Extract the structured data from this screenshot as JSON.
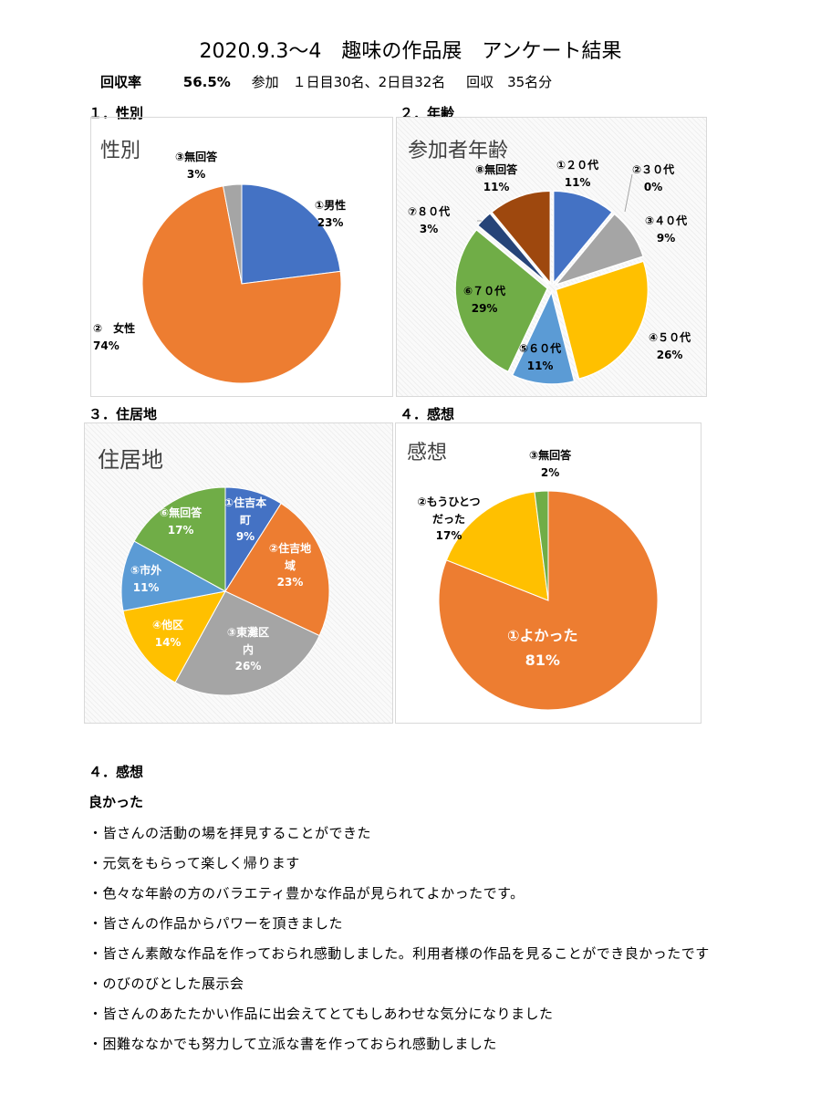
{
  "title": "2020.9.3～4　趣味の作品展　アンケート結果",
  "summary": {
    "rate_label": "回収率",
    "rate_value": "56.5%",
    "participation": "参加　１日目30名、2日目32名",
    "collected": "回収　35名分"
  },
  "sections": {
    "gender": "１．性別",
    "age": "２．年齢",
    "residence": "３．住居地",
    "impression": "４．感想"
  },
  "chart_data": [
    {
      "type": "pie",
      "title": "性別",
      "slices": [
        {
          "label": "①男性",
          "value": 23,
          "value_label": "23%",
          "color": "#4472c4"
        },
        {
          "label": "②　女性",
          "value": 74,
          "value_label": "74%",
          "color": "#ed7d31"
        },
        {
          "label": "③無回答",
          "value": 3,
          "value_label": "3%",
          "color": "#a5a5a5"
        }
      ]
    },
    {
      "type": "pie",
      "title": "参加者年齢",
      "exploded": true,
      "slices": [
        {
          "label": "①２０代",
          "value": 11,
          "value_label": "11%",
          "color": "#4472c4"
        },
        {
          "label": "②３０代",
          "value": 0,
          "value_label": "0%",
          "color": "#ed7d31"
        },
        {
          "label": "③４０代",
          "value": 9,
          "value_label": "9%",
          "color": "#a5a5a5"
        },
        {
          "label": "④５０代",
          "value": 26,
          "value_label": "26%",
          "color": "#ffc000"
        },
        {
          "label": "⑤６０代",
          "value": 11,
          "value_label": "11%",
          "color": "#5b9bd5"
        },
        {
          "label": "⑥７０代",
          "value": 29,
          "value_label": "29%",
          "color": "#70ad47"
        },
        {
          "label": "⑦８０代",
          "value": 3,
          "value_label": "3%",
          "color": "#264478"
        },
        {
          "label": "⑧無回答",
          "value": 11,
          "value_label": "11%",
          "color": "#9e480e"
        }
      ]
    },
    {
      "type": "pie",
      "title": "住居地",
      "slices": [
        {
          "label": "①住吉本町",
          "value": 9,
          "value_label": "9%",
          "color": "#4472c4"
        },
        {
          "label": "②住吉地域",
          "value": 23,
          "value_label": "23%",
          "color": "#ed7d31"
        },
        {
          "label": "③東灘区内",
          "value": 26,
          "value_label": "26%",
          "color": "#a5a5a5"
        },
        {
          "label": "④他区",
          "value": 14,
          "value_label": "14%",
          "color": "#ffc000"
        },
        {
          "label": "⑤市外",
          "value": 11,
          "value_label": "11%",
          "color": "#5b9bd5"
        },
        {
          "label": "⑥無回答",
          "value": 17,
          "value_label": "17%",
          "color": "#70ad47"
        }
      ]
    },
    {
      "type": "pie",
      "title": "感想",
      "slices": [
        {
          "label": "①よかった",
          "value": 81,
          "value_label": "81%",
          "color": "#ed7d31"
        },
        {
          "label": "②もうひとつだった",
          "value": 17,
          "value_label": "17%",
          "color": "#ffc000"
        },
        {
          "label": "③無回答",
          "value": 2,
          "value_label": "2%",
          "color": "#70ad47"
        }
      ]
    }
  ],
  "comments": {
    "section_title": "４．感想",
    "heading": "良かった",
    "items": [
      "・皆さんの活動の場を拝見することができた",
      "・元気をもらって楽しく帰ります",
      "・色々な年齢の方のバラエティ豊かな作品が見られてよかったです。",
      "・皆さんの作品からパワーを頂きました",
      "・皆さん素敵な作品を作っておられ感動しました。利用者様の作品を見ることができ良かったです",
      "・のびのびとした展示会",
      "・皆さんのあたたかい作品に出会えてとてもしあわせな気分になりました",
      "・困難ななかでも努力して立派な書を作っておられ感動しました"
    ]
  }
}
